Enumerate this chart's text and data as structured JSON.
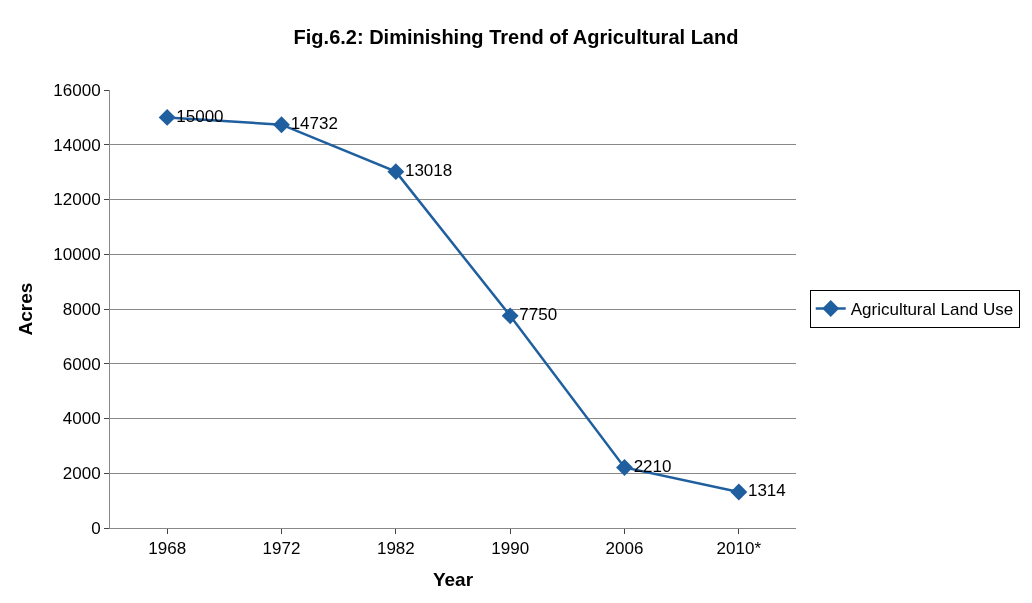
{
  "chart_data": {
    "type": "line",
    "title": "Fig.6.2: Diminishing Trend of Agricultural Land",
    "xlabel": "Year",
    "ylabel": "Acres",
    "categories": [
      "1968",
      "1972",
      "1982",
      "1990",
      "2006",
      "2010*"
    ],
    "series": [
      {
        "name": "Agricultural Land Use",
        "color": "#1f5f9f",
        "values": [
          15000,
          14732,
          13018,
          7750,
          2210,
          1314
        ]
      }
    ],
    "ylim": [
      0,
      16000
    ],
    "yticks": [
      0,
      2000,
      4000,
      6000,
      8000,
      10000,
      12000,
      14000,
      16000
    ],
    "grid": "y",
    "legend": "right",
    "marker": "diamond",
    "line_style": "solid",
    "data_labels": true
  }
}
